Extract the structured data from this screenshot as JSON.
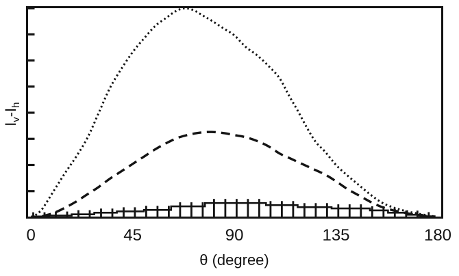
{
  "figure": {
    "background": "#ffffff",
    "line_color": "#141414"
  },
  "chart_data": {
    "type": "line",
    "title": "",
    "xlabel": "θ (degree)",
    "ylabel": "Iv-Ih",
    "ylabel_parts": {
      "base_1": "I",
      "sub_1": "v",
      "separator": "-",
      "base_2": "I",
      "sub_2": "h"
    },
    "xlim": [
      0,
      180
    ],
    "xticks": [
      0,
      45,
      90,
      135,
      180
    ],
    "ylim": [
      0,
      1.0
    ],
    "y_axis_tick_step": 0.125,
    "y_tick_labels_shown": false,
    "y_units": "arbitrary (unlabeled axis)",
    "grid": false,
    "legend": null,
    "series": [
      {
        "name": "dotted curve (tall bell, peak near 68 deg)",
        "style": "dotted",
        "x": [
          2,
          5,
          10,
          15,
          20,
          25,
          30,
          35,
          40,
          45,
          50,
          55,
          60,
          64,
          68,
          72,
          76,
          80,
          85,
          90,
          95,
          100,
          105,
          110,
          114,
          118,
          122,
          126,
          130,
          135,
          140,
          145,
          150,
          155,
          160,
          165,
          170,
          175,
          178
        ],
        "y": [
          0.01,
          0.04,
          0.125,
          0.21,
          0.29,
          0.38,
          0.5,
          0.62,
          0.71,
          0.79,
          0.855,
          0.915,
          0.955,
          0.985,
          1.0,
          0.99,
          0.965,
          0.94,
          0.905,
          0.87,
          0.815,
          0.775,
          0.725,
          0.665,
          0.585,
          0.51,
          0.43,
          0.36,
          0.315,
          0.25,
          0.2,
          0.155,
          0.11,
          0.072,
          0.048,
          0.032,
          0.02,
          0.01,
          0.005
        ]
      },
      {
        "name": "dashed curve (medium bell, peak near 80 deg)",
        "style": "dashed",
        "x": [
          5,
          10,
          15,
          20,
          25,
          30,
          35,
          40,
          45,
          50,
          55,
          60,
          65,
          70,
          75,
          80,
          85,
          90,
          95,
          100,
          105,
          110,
          115,
          120,
          125,
          130,
          135,
          140,
          145,
          150,
          155,
          160,
          165,
          170,
          175
        ],
        "y": [
          0.005,
          0.02,
          0.045,
          0.075,
          0.11,
          0.145,
          0.185,
          0.22,
          0.255,
          0.29,
          0.325,
          0.355,
          0.38,
          0.395,
          0.405,
          0.408,
          0.403,
          0.393,
          0.383,
          0.365,
          0.34,
          0.305,
          0.28,
          0.255,
          0.23,
          0.205,
          0.172,
          0.135,
          0.105,
          0.075,
          0.05,
          0.034,
          0.022,
          0.012,
          0.006
        ]
      },
      {
        "name": "solid stepped curve with vertical error bars (low, max near 90 deg)",
        "style": "solid-steps",
        "bins": [
          [
            0,
            8,
            0.004
          ],
          [
            8,
            18,
            0.008
          ],
          [
            18,
            28,
            0.014
          ],
          [
            28,
            38,
            0.022
          ],
          [
            38,
            50,
            0.028
          ],
          [
            50,
            62,
            0.035
          ],
          [
            62,
            77,
            0.052
          ],
          [
            77,
            104,
            0.068
          ],
          [
            104,
            118,
            0.058
          ],
          [
            118,
            133,
            0.048
          ],
          [
            133,
            150,
            0.042
          ],
          [
            150,
            158,
            0.033
          ],
          [
            158,
            166,
            0.022
          ],
          [
            166,
            173,
            0.012
          ],
          [
            173,
            179,
            0.005
          ]
        ],
        "error_bars": {
          "interval_deg": 5,
          "start_deg": 1
        }
      }
    ]
  }
}
